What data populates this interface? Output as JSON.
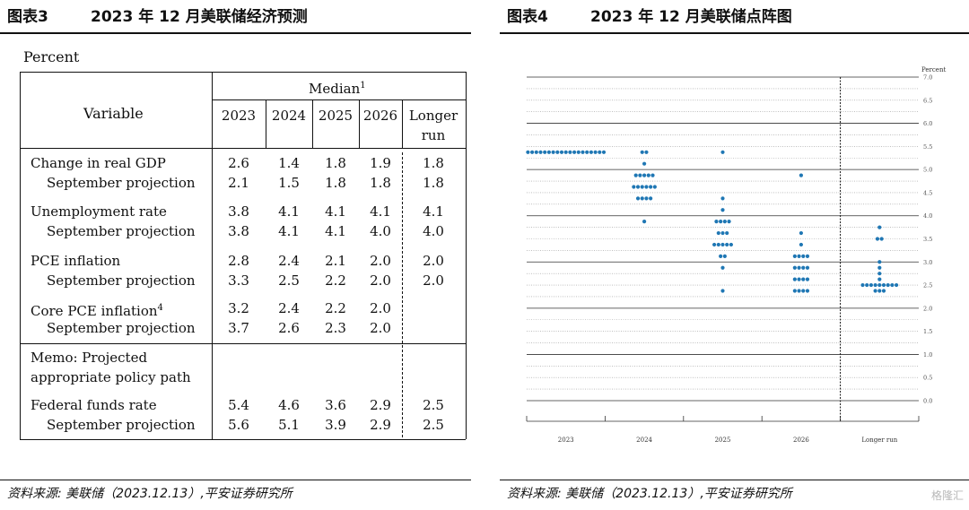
{
  "left": {
    "label": "图表3",
    "title": "2023 年 12 月美联储经济预测",
    "source": "资料来源: 美联储（2023.12.13）,平安证券研究所",
    "table": {
      "unit": "Percent",
      "variable_header": "Variable",
      "median_header": "Median",
      "median_sup": "1",
      "year_headers": [
        "2023",
        "2024",
        "2025",
        "2026"
      ],
      "longer_run_header": [
        "Longer",
        "run"
      ],
      "groups": [
        {
          "rows": [
            {
              "label": "Change in real GDP",
              "sup": "",
              "indent": false,
              "values": [
                "2.6",
                "1.4",
                "1.8",
                "1.9"
              ],
              "longer": "1.8"
            },
            {
              "label": "September projection",
              "sup": "",
              "indent": true,
              "values": [
                "2.1",
                "1.5",
                "1.8",
                "1.8"
              ],
              "longer": "1.8"
            }
          ]
        },
        {
          "rows": [
            {
              "label": "Unemployment rate",
              "sup": "",
              "indent": false,
              "values": [
                "3.8",
                "4.1",
                "4.1",
                "4.1"
              ],
              "longer": "4.1"
            },
            {
              "label": "September projection",
              "sup": "",
              "indent": true,
              "values": [
                "3.8",
                "4.1",
                "4.1",
                "4.0"
              ],
              "longer": "4.0"
            }
          ]
        },
        {
          "rows": [
            {
              "label": "PCE inflation",
              "sup": "",
              "indent": false,
              "values": [
                "2.8",
                "2.4",
                "2.1",
                "2.0"
              ],
              "longer": "2.0"
            },
            {
              "label": "September projection",
              "sup": "",
              "indent": true,
              "values": [
                "3.3",
                "2.5",
                "2.2",
                "2.0"
              ],
              "longer": "2.0"
            }
          ]
        },
        {
          "rows": [
            {
              "label": "Core PCE inflation",
              "sup": "4",
              "indent": false,
              "values": [
                "3.2",
                "2.4",
                "2.2",
                "2.0"
              ],
              "longer": ""
            },
            {
              "label": "September projection",
              "sup": "",
              "indent": true,
              "values": [
                "3.7",
                "2.6",
                "2.3",
                "2.0"
              ],
              "longer": ""
            }
          ]
        }
      ],
      "memo": [
        "Memo: Projected",
        "appropriate policy path"
      ],
      "memo_rows": [
        {
          "label": "Federal funds rate",
          "sup": "",
          "indent": false,
          "values": [
            "5.4",
            "4.6",
            "3.6",
            "2.9"
          ],
          "longer": "2.5"
        },
        {
          "label": "September projection",
          "sup": "",
          "indent": true,
          "values": [
            "5.6",
            "5.1",
            "3.9",
            "2.9"
          ],
          "longer": "2.5"
        }
      ]
    }
  },
  "right": {
    "label": "图表4",
    "title": "2023 年 12 月美联储点阵图",
    "source": "资料来源: 美联储（2023.12.13）,平安证券研究所"
  },
  "watermark": "格隆汇",
  "colors": {
    "dot": "#1f77b4",
    "rule": "#111111",
    "grid_dot": "#9a9a9a"
  },
  "chart_data": {
    "type": "scatter",
    "title": "",
    "ylabel": "Percent",
    "ylim": [
      0,
      7
    ],
    "y_ticks": [
      "0.0",
      "0.5",
      "1.0",
      "1.5",
      "2.0",
      "2.5",
      "3.0",
      "3.5",
      "4.0",
      "4.5",
      "5.0",
      "5.5",
      "6.0",
      "6.5",
      "7.0"
    ],
    "categories": [
      "2023",
      "2024",
      "2025",
      "2026",
      "Longer run"
    ],
    "series": [
      {
        "x": "2023",
        "points": [
          {
            "y": 5.375,
            "count": 19
          }
        ]
      },
      {
        "x": "2024",
        "points": [
          {
            "y": 5.375,
            "count": 2
          },
          {
            "y": 5.125,
            "count": 1
          },
          {
            "y": 4.875,
            "count": 5
          },
          {
            "y": 4.625,
            "count": 6
          },
          {
            "y": 4.375,
            "count": 4
          },
          {
            "y": 3.875,
            "count": 1
          }
        ]
      },
      {
        "x": "2025",
        "points": [
          {
            "y": 5.375,
            "count": 1
          },
          {
            "y": 4.375,
            "count": 1
          },
          {
            "y": 4.125,
            "count": 1
          },
          {
            "y": 3.875,
            "count": 4
          },
          {
            "y": 3.625,
            "count": 3
          },
          {
            "y": 3.375,
            "count": 5
          },
          {
            "y": 3.125,
            "count": 2
          },
          {
            "y": 2.875,
            "count": 1
          },
          {
            "y": 2.375,
            "count": 1
          }
        ]
      },
      {
        "x": "2026",
        "points": [
          {
            "y": 4.875,
            "count": 1
          },
          {
            "y": 3.625,
            "count": 1
          },
          {
            "y": 3.375,
            "count": 1
          },
          {
            "y": 3.125,
            "count": 4
          },
          {
            "y": 2.875,
            "count": 4
          },
          {
            "y": 2.625,
            "count": 4
          },
          {
            "y": 2.375,
            "count": 4
          }
        ]
      },
      {
        "x": "Longer run",
        "points": [
          {
            "y": 3.75,
            "count": 1
          },
          {
            "y": 3.5,
            "count": 2
          },
          {
            "y": 3.0,
            "count": 1
          },
          {
            "y": 2.875,
            "count": 1
          },
          {
            "y": 2.75,
            "count": 1
          },
          {
            "y": 2.625,
            "count": 1
          },
          {
            "y": 2.5,
            "count": 9
          },
          {
            "y": 2.375,
            "count": 3
          }
        ]
      }
    ]
  }
}
